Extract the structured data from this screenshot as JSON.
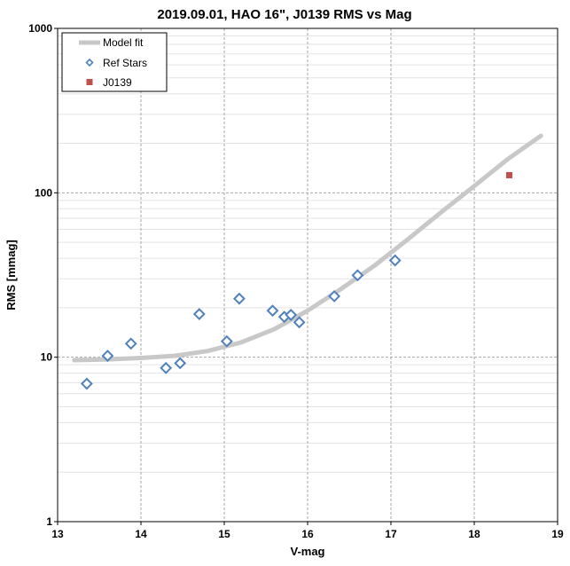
{
  "chart_data": {
    "type": "scatter",
    "title": "2019.09.01, HAO 16\", J0139 RMS vs Mag",
    "xlabel": "V-mag",
    "ylabel": "RMS [mmag]",
    "xlim": [
      13,
      19
    ],
    "ylim": [
      1,
      1000
    ],
    "yscale": "log",
    "grid": true,
    "legend_position": "top-left",
    "x_ticks": [
      "13",
      "14",
      "15",
      "16",
      "17",
      "18",
      "19"
    ],
    "y_ticks": [
      "1",
      "10",
      "100",
      "1000"
    ],
    "series": [
      {
        "name": "Model fit",
        "kind": "line",
        "color": "#c8c8c8",
        "x": [
          13.2,
          13.6,
          14.0,
          14.4,
          14.8,
          15.2,
          15.6,
          16.0,
          16.4,
          16.8,
          17.2,
          17.6,
          18.0,
          18.4,
          18.8
        ],
        "y": [
          9.6,
          9.7,
          9.9,
          10.2,
          10.9,
          12.3,
          14.8,
          19.2,
          26.0,
          36.0,
          52.0,
          76.0,
          110.0,
          160.0,
          222.0
        ]
      },
      {
        "name": "Ref Stars",
        "kind": "marker",
        "marker": "diamond",
        "color": "#4f81bd",
        "x": [
          13.35,
          13.6,
          13.88,
          14.3,
          14.47,
          14.7,
          15.03,
          15.18,
          15.58,
          15.72,
          15.8,
          15.9,
          16.32,
          16.6,
          17.05
        ],
        "y": [
          6.9,
          10.2,
          12.1,
          8.6,
          9.2,
          18.3,
          12.5,
          22.7,
          19.2,
          17.6,
          18.1,
          16.3,
          23.5,
          31.5,
          38.8
        ]
      },
      {
        "name": "J0139",
        "kind": "marker",
        "marker": "square",
        "color": "#c0504d",
        "x": [
          18.42
        ],
        "y": [
          128
        ]
      }
    ]
  }
}
